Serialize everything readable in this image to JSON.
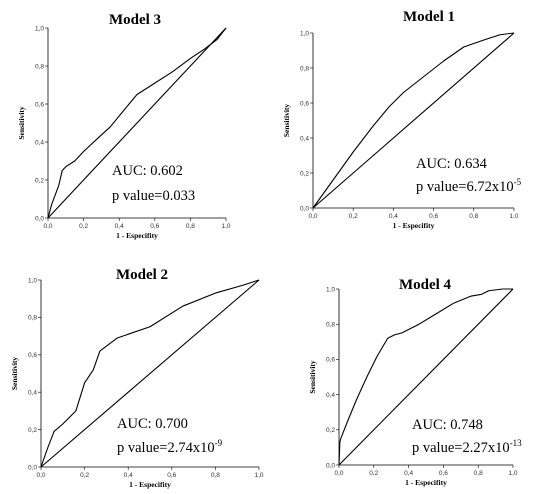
{
  "chart_data": [
    {
      "type": "line",
      "title": "Model 3",
      "xlabel": "1 - Especifity",
      "ylabel": "Sensitivity",
      "xlim": [
        0,
        1
      ],
      "ylim": [
        0,
        1
      ],
      "xticks": [
        "0,0",
        "0,2",
        "0,4",
        "0,6",
        "0,8",
        "1,0"
      ],
      "yticks": [
        "0,0",
        "0,2",
        "0,4",
        "0,6",
        "0,8",
        "1,0"
      ],
      "auc_text": "AUC: 0.602",
      "p_prefix": "p value=",
      "p_base": "0.033",
      "p_exp": "",
      "series": [
        {
          "x": [
            0,
            0.02,
            0.04,
            0.06,
            0.08,
            0.1,
            0.15,
            0.2,
            0.28,
            0.35,
            0.42,
            0.5,
            0.6,
            0.7,
            0.8,
            0.88,
            0.95,
            1.0
          ],
          "y": [
            0,
            0.07,
            0.12,
            0.17,
            0.25,
            0.27,
            0.3,
            0.35,
            0.42,
            0.48,
            0.56,
            0.65,
            0.71,
            0.77,
            0.84,
            0.89,
            0.94,
            1.0
          ]
        },
        {
          "x": [
            0,
            1
          ],
          "y": [
            0,
            1
          ]
        }
      ]
    },
    {
      "type": "line",
      "title": "Model 1",
      "xlabel": "1 - Especifity",
      "ylabel": "Sensitivity",
      "xlim": [
        0,
        1
      ],
      "ylim": [
        0,
        1
      ],
      "xticks": [
        "0,0",
        "0,2",
        "0,4",
        "0,6",
        "0,8",
        "1,0"
      ],
      "yticks": [
        "0,0",
        "0,2",
        "0,4",
        "0,6",
        "0,8",
        "1,0"
      ],
      "auc_text": "AUC: 0.634",
      "p_prefix": "p value=",
      "p_base": "6.72x10",
      "p_exp": "-5",
      "series": [
        {
          "x": [
            0,
            0.1,
            0.2,
            0.3,
            0.38,
            0.45,
            0.55,
            0.65,
            0.75,
            0.85,
            0.93,
            1.0
          ],
          "y": [
            0,
            0.16,
            0.32,
            0.47,
            0.58,
            0.66,
            0.75,
            0.84,
            0.92,
            0.96,
            0.99,
            1.0
          ]
        },
        {
          "x": [
            0,
            1
          ],
          "y": [
            0,
            1
          ]
        }
      ]
    },
    {
      "type": "line",
      "title": "Model 2",
      "xlabel": "1 - Especifity",
      "ylabel": "Sensitivity",
      "xlim": [
        0,
        1
      ],
      "ylim": [
        0,
        1
      ],
      "xticks": [
        "0,0",
        "0,2",
        "0,4",
        "0,6",
        "0,8",
        "1,0"
      ],
      "yticks": [
        "0,0",
        "0,2",
        "0,4",
        "0,6",
        "0,8",
        "1,0"
      ],
      "auc_text": "AUC: 0.700",
      "p_prefix": "p value=",
      "p_base": "2.74x10",
      "p_exp": "-9",
      "series": [
        {
          "x": [
            0,
            0.03,
            0.06,
            0.1,
            0.16,
            0.2,
            0.24,
            0.27,
            0.35,
            0.5,
            0.65,
            0.8,
            0.92,
            1.0
          ],
          "y": [
            0,
            0.1,
            0.19,
            0.23,
            0.3,
            0.45,
            0.52,
            0.62,
            0.69,
            0.75,
            0.86,
            0.93,
            0.97,
            1.0
          ]
        },
        {
          "x": [
            0,
            1
          ],
          "y": [
            0,
            1
          ]
        }
      ]
    },
    {
      "type": "line",
      "title": "Model 4",
      "xlabel": "1 - Especifity",
      "ylabel": "Sensitivity",
      "xlim": [
        0,
        1
      ],
      "ylim": [
        0,
        1
      ],
      "xticks": [
        "0,0",
        "0,2",
        "0,4",
        "0,6",
        "0,8",
        "1,0"
      ],
      "yticks": [
        "0,0",
        "0,2",
        "0,4",
        "0,6",
        "0,8",
        "1,0"
      ],
      "auc_text": "AUC: 0.748",
      "p_prefix": "p value=",
      "p_base": "2.27x10",
      "p_exp": "-13",
      "series": [
        {
          "x": [
            0,
            0.005,
            0.01,
            0.05,
            0.1,
            0.16,
            0.22,
            0.28,
            0.32,
            0.36,
            0.46,
            0.56,
            0.66,
            0.76,
            0.82,
            0.86,
            0.94,
            1.0
          ],
          "y": [
            0,
            0.13,
            0.15,
            0.25,
            0.37,
            0.5,
            0.62,
            0.72,
            0.74,
            0.75,
            0.8,
            0.86,
            0.92,
            0.96,
            0.97,
            0.99,
            1.0,
            1.0
          ]
        },
        {
          "x": [
            0,
            1
          ],
          "y": [
            0,
            1
          ]
        }
      ]
    }
  ]
}
